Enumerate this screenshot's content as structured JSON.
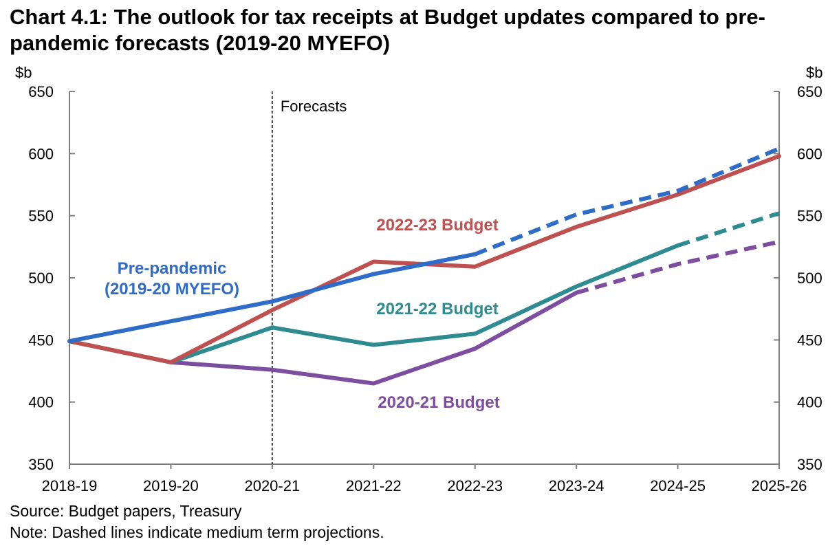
{
  "title": "Chart 4.1: The outlook for tax receipts at Budget updates compared to pre-pandemic forecasts (2019-20 MYEFO)",
  "source": "Source: Budget papers, Treasury",
  "note": "Note: Dashed lines indicate medium term projections.",
  "chart_data": {
    "type": "line",
    "title": "Chart 4.1: The outlook for tax receipts at Budget updates compared to pre-pandemic forecasts (2019-20 MYEFO)",
    "ylabel_left": "$b",
    "ylabel_right": "$b",
    "ylim": [
      350,
      650
    ],
    "yticks": [
      350,
      400,
      450,
      500,
      550,
      600,
      650
    ],
    "categories": [
      "2018-19",
      "2019-20",
      "2020-21",
      "2021-22",
      "2022-23",
      "2023-24",
      "2024-25",
      "2025-26"
    ],
    "forecast_marker": {
      "category": "2020-21",
      "label": "Forecasts"
    },
    "series": [
      {
        "name": "Pre-pandemic (2019-20 MYEFO)",
        "label_lines": [
          "Pre-pandemic",
          "(2019-20 MYEFO)"
        ],
        "color": "#2E6CC8",
        "values": [
          449,
          465,
          481,
          503,
          519,
          551,
          570,
          604
        ],
        "dashed_from_index": 4
      },
      {
        "name": "2022-23 Budget",
        "label_lines": [
          "2022-23 Budget"
        ],
        "color": "#BE5150",
        "values": [
          449,
          432,
          474,
          513,
          509,
          541,
          567,
          598
        ],
        "dashed_from_index": null
      },
      {
        "name": "2021-22 Budget",
        "label_lines": [
          "2021-22 Budget"
        ],
        "color": "#2E8B8F",
        "values": [
          449,
          432,
          460,
          446,
          455,
          493,
          526,
          552
        ],
        "dashed_from_index": 6
      },
      {
        "name": "2020-21 Budget",
        "label_lines": [
          "2020-21 Budget"
        ],
        "color": "#7D4E9F",
        "values": [
          449,
          432,
          426,
          415,
          443,
          488,
          511,
          529
        ],
        "dashed_from_index": 5
      }
    ]
  }
}
